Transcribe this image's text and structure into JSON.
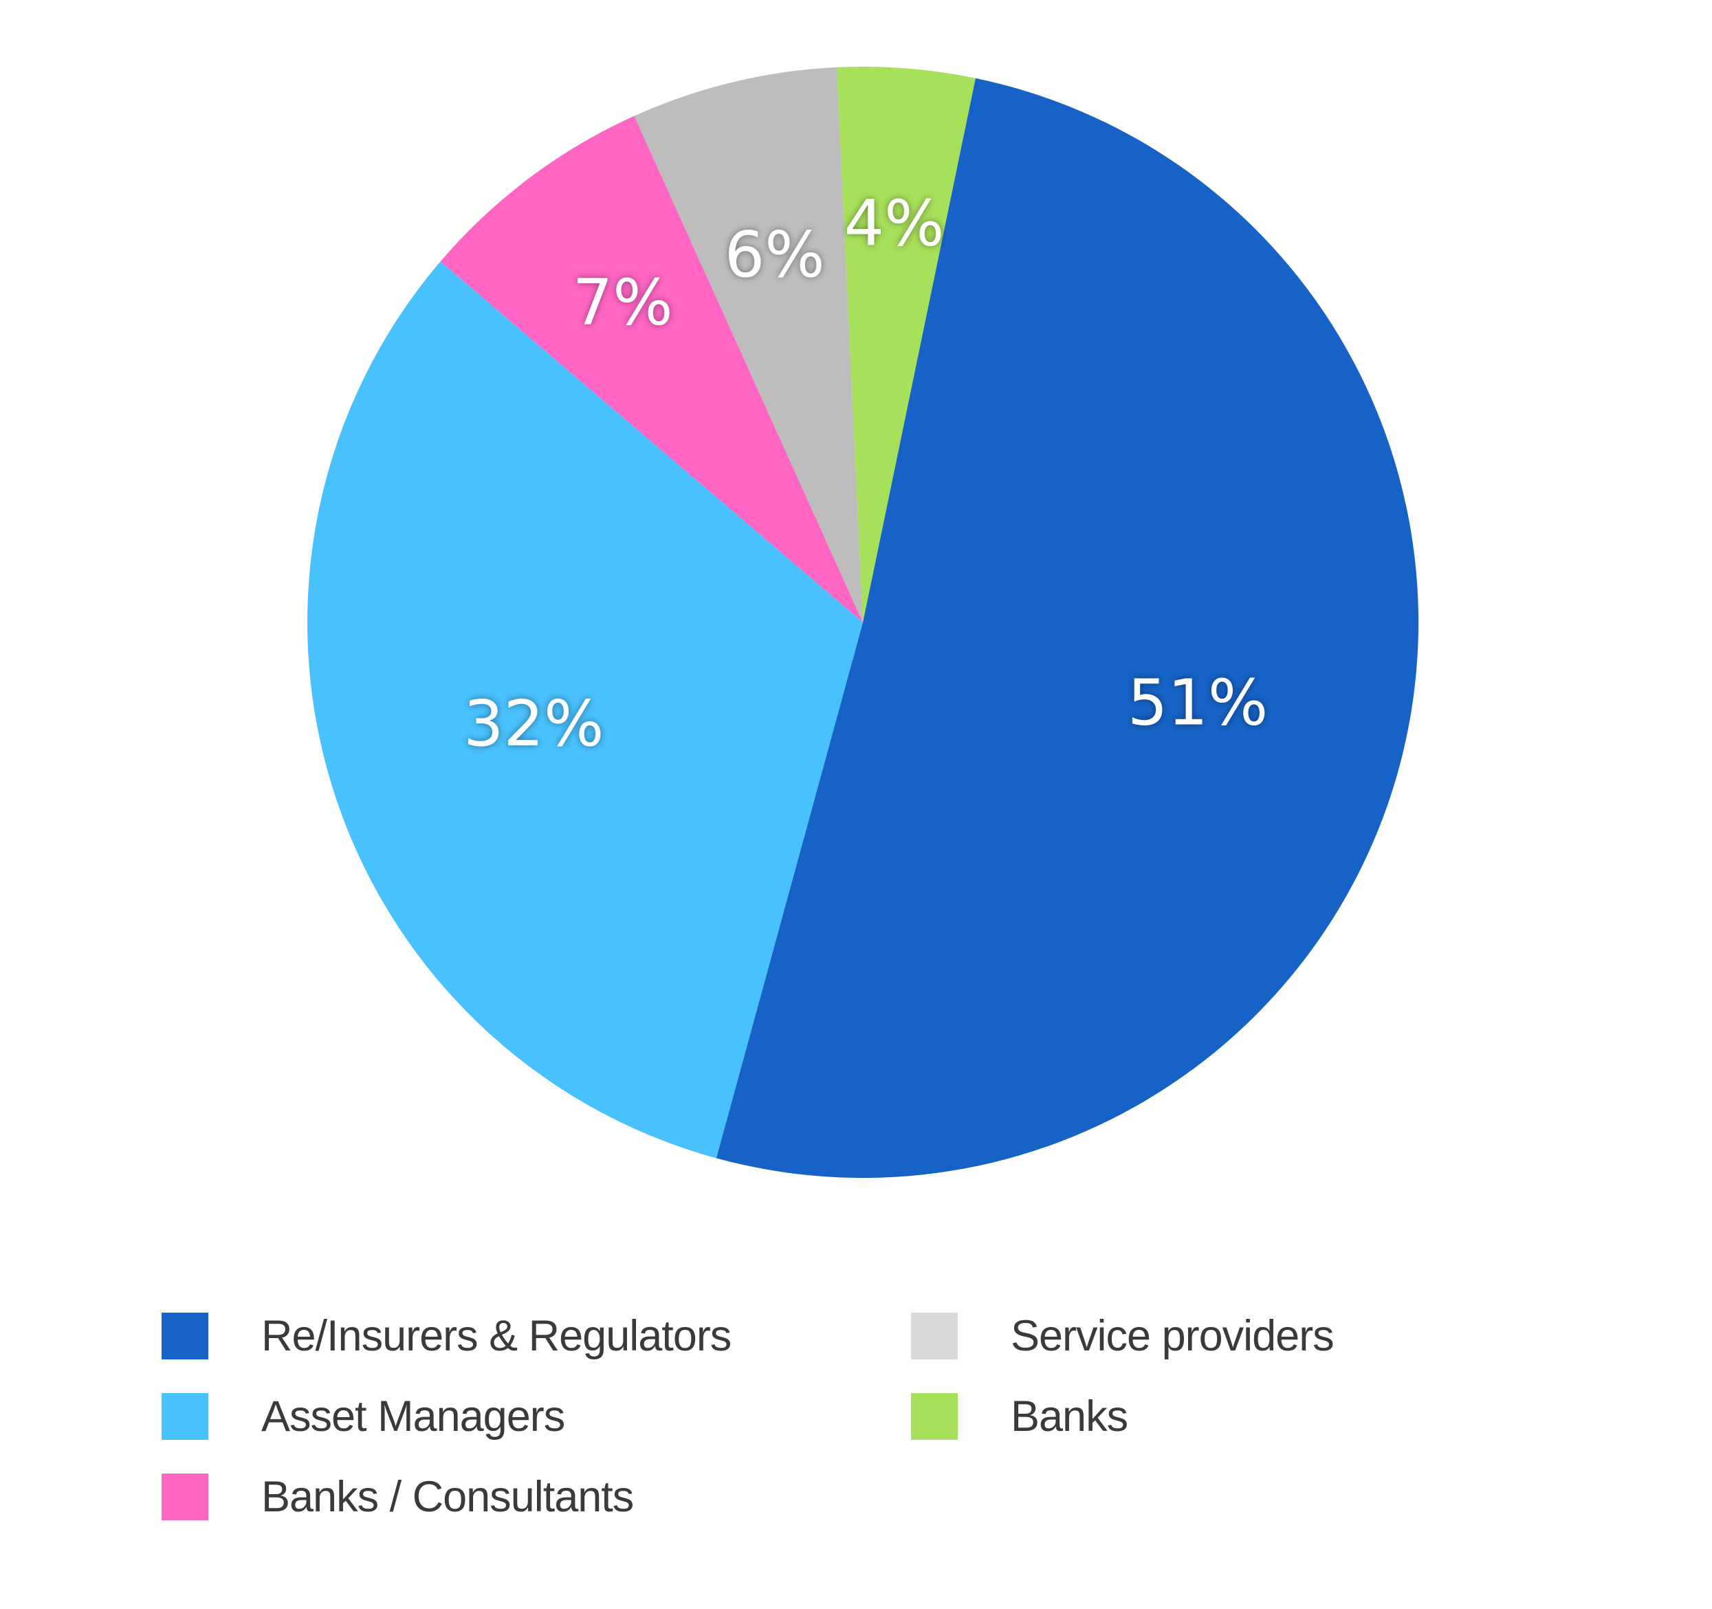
{
  "chart_data": {
    "type": "pie",
    "title": "",
    "slices": [
      {
        "label": "Re/Insurers & Regulators",
        "value": 51,
        "value_label": "51%",
        "color": "#1662C6"
      },
      {
        "label": "Asset Managers",
        "value": 32,
        "value_label": "32%",
        "color": "#49C1FC"
      },
      {
        "label": " Banks / Consultants",
        "value": 7,
        "value_label": "7%",
        "color": "#FF66C4"
      },
      {
        "label": "Service providers",
        "value": 6,
        "value_label": "6%",
        "color": "#BDBDBD"
      },
      {
        "label": "Banks",
        "value": 4,
        "value_label": "4%",
        "color": "#A7E05A"
      }
    ],
    "legend": {
      "placement": "bottom",
      "columns": 2,
      "entries": [
        {
          "label": "Re/Insurers & Regulators",
          "color": "#1662C6"
        },
        {
          "label": "Asset Managers",
          "color": "#49C1FC"
        },
        {
          "label": " Banks / Consultants",
          "color": "#FF66C4"
        },
        {
          "label": "Service providers",
          "color": "#D9D9D9"
        },
        {
          "label": "Banks",
          "color": "#A7E05A"
        }
      ]
    }
  }
}
